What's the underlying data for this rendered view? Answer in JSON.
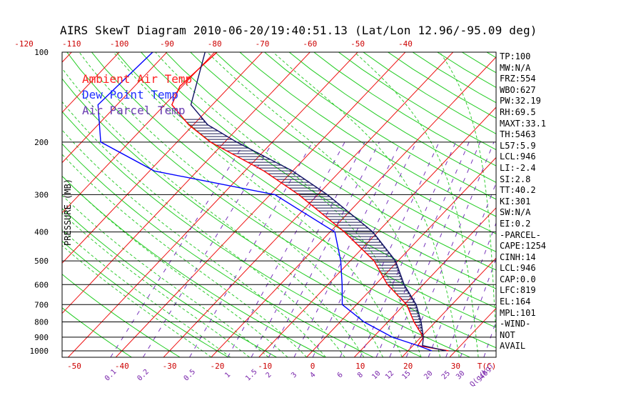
{
  "title": "AIRS SkewT Diagram 2010-06-20/19:40:51.13 (Lat/Lon 12.96/-95.09 deg)",
  "ylabel": "PRESSURE (MB)",
  "legend": [
    {
      "label": "Ambient Air Temp",
      "color": "#ff0000"
    },
    {
      "label": "Dew Point Temp",
      "color": "#0000ff"
    },
    {
      "label": "Air Parcel Temp",
      "color": "#5a2ca0"
    }
  ],
  "stats": [
    "TP:100",
    "MW:N/A",
    "FRZ:554",
    "WBO:627",
    "PW:32.19",
    "RH:69.5",
    "MAXT:33.1",
    "TH:5463",
    "L57:5.9",
    "LCL:946",
    "LI:-2.4",
    "SI:2.8",
    "TT:40.2",
    "KI:301",
    "SW:N/A",
    "EI:0.2",
    "-PARCEL-",
    "CAPE:1254",
    "CINH:14",
    "LCL:946",
    "CAP:0.0",
    "LFC:819",
    "EL:164",
    "MPL:101",
    "-WIND-",
    "NOT",
    "AVAIL"
  ],
  "chart_data": {
    "type": "line",
    "title": "AIRS SkewT Diagram 2010-06-20/19:40:51.13 (Lat/Lon 12.96/-95.09 deg)",
    "ylabel": "PRESSURE (MB)",
    "xlabel": "T(C)",
    "y_scale": "log",
    "y_reversed": true,
    "pressure_ticks": [
      100,
      200,
      300,
      400,
      500,
      600,
      700,
      800,
      900,
      1000
    ],
    "bottom_temp_ticks": [
      -50,
      -40,
      -30,
      -20,
      -10,
      0,
      10,
      20,
      30
    ],
    "top_temp_ticks": [
      -120,
      -110,
      -100,
      -90,
      -80,
      -70,
      -60,
      -50,
      -40
    ],
    "mixing_ratio_ticks": [
      "0.1",
      "0.2",
      "0.5",
      "1",
      "1.5",
      "2",
      "3",
      "4",
      "6",
      "8",
      "10",
      "12",
      "15",
      "20",
      "25",
      "30",
      "40"
    ],
    "mixing_ratio_unit": "Q(g/kg)",
    "series": [
      {
        "name": "Ambient Air Temp",
        "color": "#ff0000",
        "points": [
          [
            100,
            -79.5
          ],
          [
            130,
            -80.5
          ],
          [
            150,
            -78.5
          ],
          [
            175,
            -71
          ],
          [
            200,
            -63
          ],
          [
            250,
            -46
          ],
          [
            300,
            -34
          ],
          [
            400,
            -17
          ],
          [
            500,
            -5
          ],
          [
            600,
            2.5
          ],
          [
            700,
            10.5
          ],
          [
            800,
            15.5
          ],
          [
            900,
            20.5
          ],
          [
            960,
            21
          ],
          [
            1000,
            28.5
          ]
        ]
      },
      {
        "name": "Dew Point Temp",
        "color": "#0000ff",
        "points": [
          [
            100,
            -93
          ],
          [
            150,
            -94
          ],
          [
            200,
            -86
          ],
          [
            250,
            -69
          ],
          [
            300,
            -39
          ],
          [
            400,
            -19
          ],
          [
            500,
            -12
          ],
          [
            600,
            -7
          ],
          [
            700,
            -3
          ],
          [
            800,
            5
          ],
          [
            900,
            14
          ],
          [
            960,
            21
          ],
          [
            1000,
            25
          ]
        ]
      },
      {
        "name": "Air Parcel Temp",
        "color": "#5a2ca0",
        "points": [
          [
            100,
            -82
          ],
          [
            150,
            -74.5
          ],
          [
            175,
            -67
          ],
          [
            200,
            -57.5
          ],
          [
            250,
            -40
          ],
          [
            300,
            -28
          ],
          [
            400,
            -11
          ],
          [
            500,
            -0.5
          ],
          [
            600,
            6
          ],
          [
            700,
            12.5
          ],
          [
            800,
            17
          ],
          [
            900,
            20.5
          ],
          [
            960,
            22
          ],
          [
            1000,
            28
          ]
        ]
      }
    ]
  }
}
